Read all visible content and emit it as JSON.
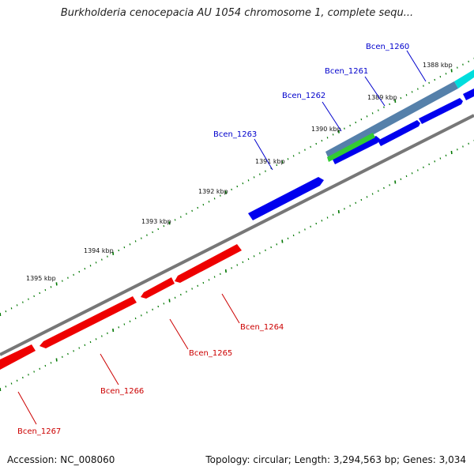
{
  "title": "Burkholderia cenocepacia AU 1054 chromosome 1, complete sequ...",
  "footer": {
    "accession": "Accession: NC_008060",
    "topology": "Topology: circular; Length: 3,294,563 bp; Genes: 3,034"
  },
  "kbp_labels": [
    "1388 kbp",
    "1389 kbp",
    "1390 kbp",
    "1391 kbp",
    "1392 kbp",
    "1393 kbp",
    "1394 kbp",
    "1395 kbp"
  ],
  "forward_genes": [
    "Bcen_1260",
    "Bcen_1261",
    "Bcen_1262",
    "Bcen_1263"
  ],
  "reverse_genes": [
    "Bcen_1264",
    "Bcen_1265",
    "Bcen_1266",
    "Bcen_1267"
  ],
  "colors": {
    "forward_cds": "#0000ee",
    "reverse_cds": "#ee0000",
    "backbone": "#888888",
    "tick": "#007700",
    "overlay_cyan": "#00dddd",
    "overlay_steel": "#4f7fb0",
    "overlay_green": "#33cc33"
  }
}
